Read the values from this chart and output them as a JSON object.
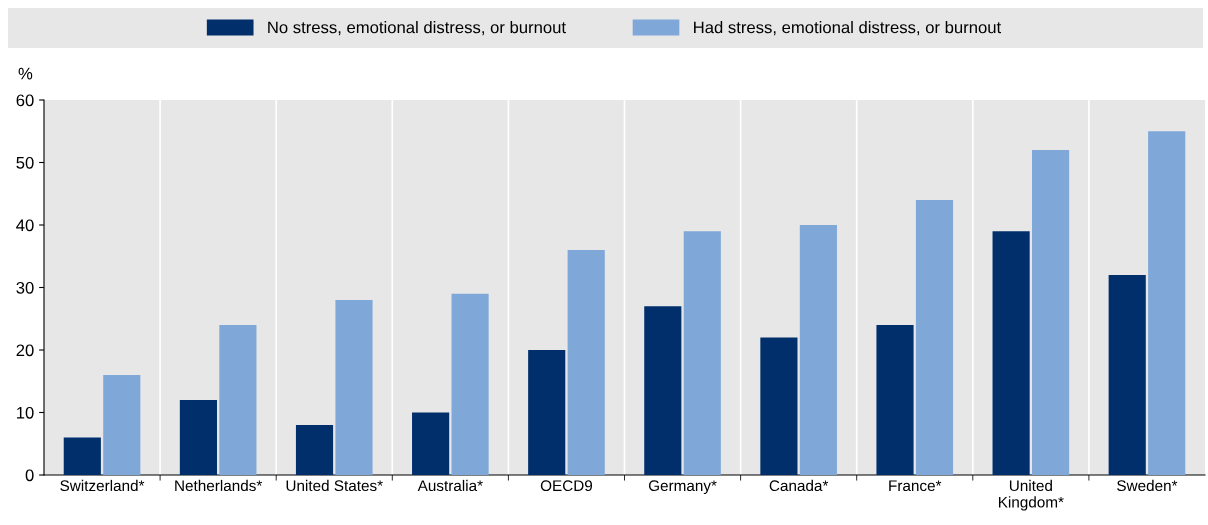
{
  "chart_data": {
    "type": "bar",
    "ylabel": "%",
    "categories": [
      "Switzerland*",
      "Netherlands*",
      "United States*",
      "Australia*",
      "OECD9",
      "Germany*",
      "Canada*",
      "France*",
      "United\nKingdom*",
      "Sweden*"
    ],
    "series": [
      {
        "name": "No stress, emotional distress, or burnout",
        "color": "#002f6c",
        "values": [
          6,
          12,
          8,
          10,
          20,
          27,
          22,
          24,
          39,
          32
        ]
      },
      {
        "name": "Had stress, emotional distress, or burnout",
        "color": "#7fa8d9",
        "values": [
          16,
          24,
          28,
          29,
          36,
          39,
          40,
          44,
          52,
          55
        ]
      }
    ],
    "ylim": [
      0,
      60
    ],
    "yticks": [
      0,
      10,
      20,
      30,
      40,
      50,
      60
    ],
    "grid": "x",
    "legend": "top"
  }
}
